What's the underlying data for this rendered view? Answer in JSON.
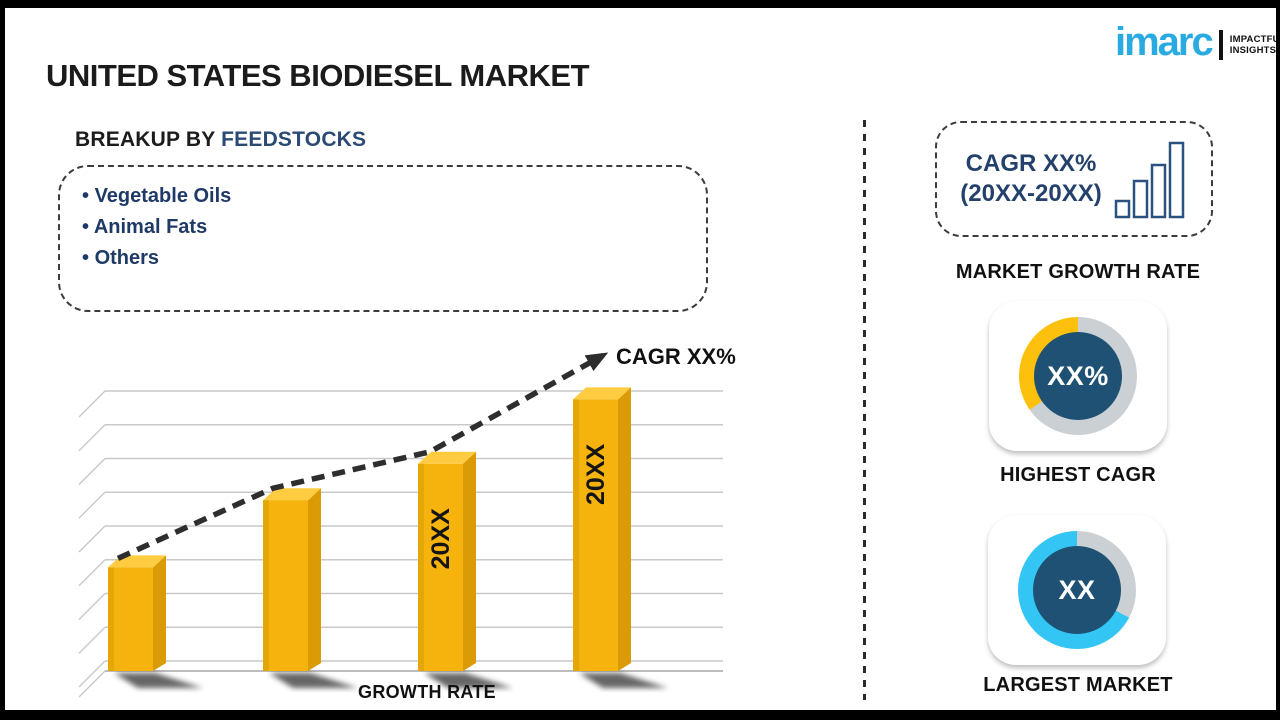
{
  "title": "UNITED STATES BIODIESEL MARKET",
  "logo": {
    "brand": "imarc",
    "tagline_line1": "IMPACTFUL",
    "tagline_line2": "INSIGHTS",
    "brand_color": "#29ABE2"
  },
  "breakup": {
    "heading_prefix": "BREAKUP BY ",
    "heading_highlight": "FEEDSTOCKS",
    "items": [
      "Vegetable Oils",
      "Animal Fats",
      "Others"
    ]
  },
  "chart_data": {
    "type": "bar",
    "title": "",
    "categories": [
      "",
      "",
      "20XX",
      "20XX"
    ],
    "values": [
      37,
      61,
      74,
      97
    ],
    "value_note": "relative bar heights, no numeric axis shown",
    "ylim": [
      0,
      100
    ],
    "bar_labels": [
      "",
      "",
      "20XX",
      "20XX"
    ],
    "xlabel": "GROWTH RATE",
    "ylabel": "",
    "grid": true,
    "gridline_count": 9,
    "trend_annotation": "CAGR XX%",
    "trend_style": "dashed-arrow"
  },
  "sidebar": {
    "cagr_box": {
      "line1": "CAGR XX%",
      "line2": "(20XX-20XX)",
      "icon": "bar-chart-icon"
    },
    "market_growth_rate_label": "MARKET GROWTH RATE",
    "highest_cagr": {
      "value": "XX%",
      "label": "HIGHEST CAGR",
      "ring": {
        "base": "#CBD0D4",
        "accent": "#FDC00D",
        "accent_from_deg": 235,
        "accent_to_deg": 360
      }
    },
    "largest_market": {
      "value": "XX",
      "label": "LARGEST MARKET",
      "ring": {
        "base": "#CBD0D4",
        "accent": "#33C5F3",
        "accent_from_deg": 118,
        "accent_to_deg": 360
      }
    }
  },
  "colors": {
    "bar_front": "#F6B30E",
    "bar_side": "#DB9B06",
    "bar_top": "#FFCC41",
    "bar_edge": "#E5A708",
    "grid_line": "#C9C9C9",
    "trend_line": "#2E2E2E",
    "card_blue": "#1E5173",
    "navy_text": "#24416B",
    "icon_stroke": "#2B527E"
  }
}
